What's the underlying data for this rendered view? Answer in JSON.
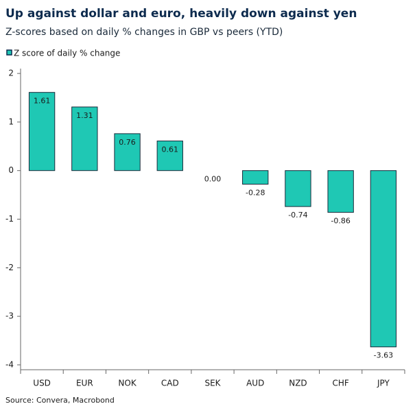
{
  "chart_data": {
    "type": "bar",
    "title": "Up against dollar and euro, heavily down against yen",
    "subtitle": "Z-scores based on daily % changes in GBP vs peers (YTD)",
    "legend": "Z score of daily % change",
    "categories": [
      "USD",
      "EUR",
      "NOK",
      "CAD",
      "SEK",
      "AUD",
      "NZD",
      "CHF",
      "JPY"
    ],
    "values": [
      1.61,
      1.31,
      0.76,
      0.61,
      0.0,
      -0.28,
      -0.74,
      -0.86,
      -3.63
    ],
    "value_labels": [
      "1.61",
      "1.31",
      "0.76",
      "0.61",
      "0.00",
      "-0.28",
      "-0.74",
      "-0.86",
      "-3.63"
    ],
    "color": "#1fc8b4",
    "ylim": [
      -4.1,
      2.1
    ],
    "yticks": [
      -4,
      -3,
      -2,
      -1,
      0,
      1,
      2
    ],
    "grid": false,
    "source": "Source: Convera, Macrobond"
  }
}
